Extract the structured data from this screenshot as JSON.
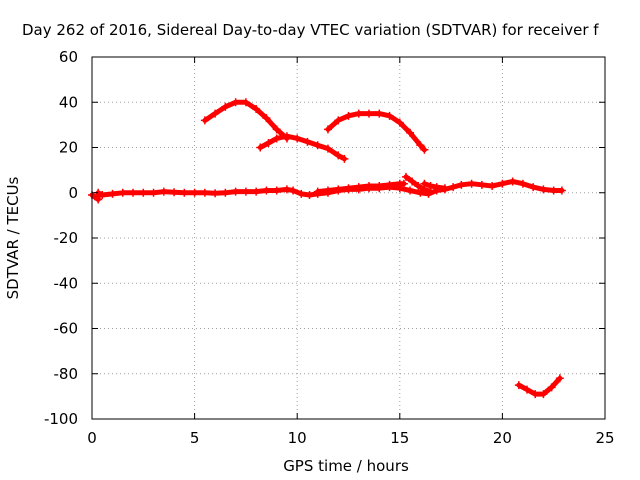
{
  "chart_data": {
    "type": "scatter",
    "title": "Day 262 of 2016, Sidereal Day-to-day VTEC variation (SDTVAR) for receiver f",
    "xlabel": "GPS time / hours",
    "ylabel": "SDTVAR / TECUs",
    "xlim": [
      0,
      25
    ],
    "ylim": [
      -100,
      60
    ],
    "x_ticks": [
      0,
      5,
      10,
      15,
      20,
      25
    ],
    "y_ticks": [
      -100,
      -80,
      -60,
      -40,
      -20,
      0,
      20,
      40,
      60
    ],
    "x_tick_labels": [
      "0",
      "5",
      "10",
      "15",
      "20",
      "25"
    ],
    "y_tick_labels": [
      "-100",
      "-80",
      "-60",
      "-40",
      "-20",
      "0",
      "20",
      "40",
      "60"
    ],
    "grid": true,
    "marker_color": "#ff0000",
    "series": [
      {
        "values": [
          [
            0.0,
            -1.0
          ],
          [
            0.3,
            -3.0
          ],
          [
            0.3,
            0.0
          ],
          [
            0.5,
            -1.0
          ],
          [
            1.0,
            -0.5
          ],
          [
            1.5,
            0.0
          ],
          [
            2.0,
            0.0
          ],
          [
            2.5,
            0.0
          ],
          [
            3.0,
            0.0
          ],
          [
            3.5,
            0.5
          ],
          [
            4.0,
            0.2
          ],
          [
            4.5,
            0.0
          ],
          [
            5.0,
            0.0
          ],
          [
            5.5,
            0.0
          ],
          [
            6.0,
            -0.2
          ],
          [
            6.5,
            0.0
          ],
          [
            7.0,
            0.5
          ],
          [
            7.5,
            0.5
          ],
          [
            8.0,
            0.5
          ],
          [
            8.5,
            1.0
          ],
          [
            9.0,
            1.0
          ],
          [
            9.5,
            1.5
          ],
          [
            9.8,
            1.0
          ],
          [
            10.2,
            -0.5
          ],
          [
            10.6,
            -1.0
          ],
          [
            11.0,
            -0.5
          ],
          [
            11.5,
            0.0
          ],
          [
            12.0,
            1.0
          ],
          [
            12.5,
            1.5
          ],
          [
            13.0,
            1.5
          ],
          [
            13.5,
            2.0
          ],
          [
            14.0,
            2.0
          ],
          [
            14.5,
            2.5
          ],
          [
            15.0,
            2.0
          ],
          [
            15.5,
            1.0
          ],
          [
            16.0,
            0.0
          ],
          [
            16.4,
            -0.5
          ],
          [
            16.8,
            1.0
          ],
          [
            17.2,
            1.5
          ],
          [
            17.6,
            2.5
          ],
          [
            18.0,
            3.5
          ],
          [
            18.5,
            4.0
          ],
          [
            19.0,
            3.5
          ],
          [
            19.5,
            3.0
          ],
          [
            20.0,
            4.0
          ],
          [
            20.5,
            5.0
          ],
          [
            21.0,
            4.0
          ],
          [
            21.5,
            2.5
          ],
          [
            22.0,
            1.5
          ],
          [
            22.5,
            1.0
          ],
          [
            22.9,
            1.0
          ]
        ]
      },
      {
        "values": [
          [
            11.0,
            0.5
          ],
          [
            11.5,
            1.0
          ],
          [
            12.0,
            1.5
          ],
          [
            12.5,
            2.0
          ],
          [
            13.0,
            2.5
          ],
          [
            13.5,
            3.0
          ],
          [
            14.0,
            3.0
          ],
          [
            14.5,
            3.5
          ],
          [
            15.0,
            4.0
          ],
          [
            15.2,
            4.0
          ]
        ]
      },
      {
        "values": [
          [
            15.3,
            7.0
          ],
          [
            15.6,
            5.0
          ],
          [
            15.9,
            3.0
          ],
          [
            16.2,
            1.5
          ],
          [
            16.5,
            0.5
          ]
        ]
      },
      {
        "values": [
          [
            16.2,
            4.0
          ],
          [
            16.5,
            3.0
          ],
          [
            16.8,
            2.5
          ],
          [
            17.2,
            2.0
          ]
        ]
      },
      {
        "values": [
          [
            5.5,
            32.0
          ],
          [
            6.0,
            35.0
          ],
          [
            6.5,
            38.0
          ],
          [
            7.0,
            40.0
          ],
          [
            7.5,
            40.0
          ],
          [
            8.0,
            37.0
          ],
          [
            8.5,
            33.0
          ],
          [
            9.0,
            28.0
          ],
          [
            9.5,
            24.0
          ]
        ]
      },
      {
        "values": [
          [
            8.2,
            20.0
          ],
          [
            8.6,
            22.0
          ],
          [
            9.0,
            24.0
          ],
          [
            9.5,
            25.0
          ],
          [
            10.0,
            24.0
          ],
          [
            10.5,
            22.5
          ],
          [
            11.0,
            21.0
          ],
          [
            11.5,
            19.5
          ],
          [
            12.0,
            16.5
          ],
          [
            12.3,
            15.0
          ]
        ]
      },
      {
        "values": [
          [
            11.5,
            28.0
          ],
          [
            12.0,
            32.0
          ],
          [
            12.5,
            34.0
          ],
          [
            13.0,
            35.0
          ],
          [
            13.5,
            35.0
          ],
          [
            14.0,
            35.0
          ],
          [
            14.5,
            34.0
          ],
          [
            15.0,
            31.0
          ],
          [
            15.5,
            26.5
          ],
          [
            16.0,
            21.0
          ],
          [
            16.2,
            19.0
          ]
        ]
      },
      {
        "values": [
          [
            20.8,
            -85.0
          ],
          [
            21.2,
            -87.0
          ],
          [
            21.6,
            -89.0
          ],
          [
            22.0,
            -89.0
          ],
          [
            22.4,
            -86.0
          ],
          [
            22.8,
            -82.0
          ]
        ]
      }
    ]
  }
}
